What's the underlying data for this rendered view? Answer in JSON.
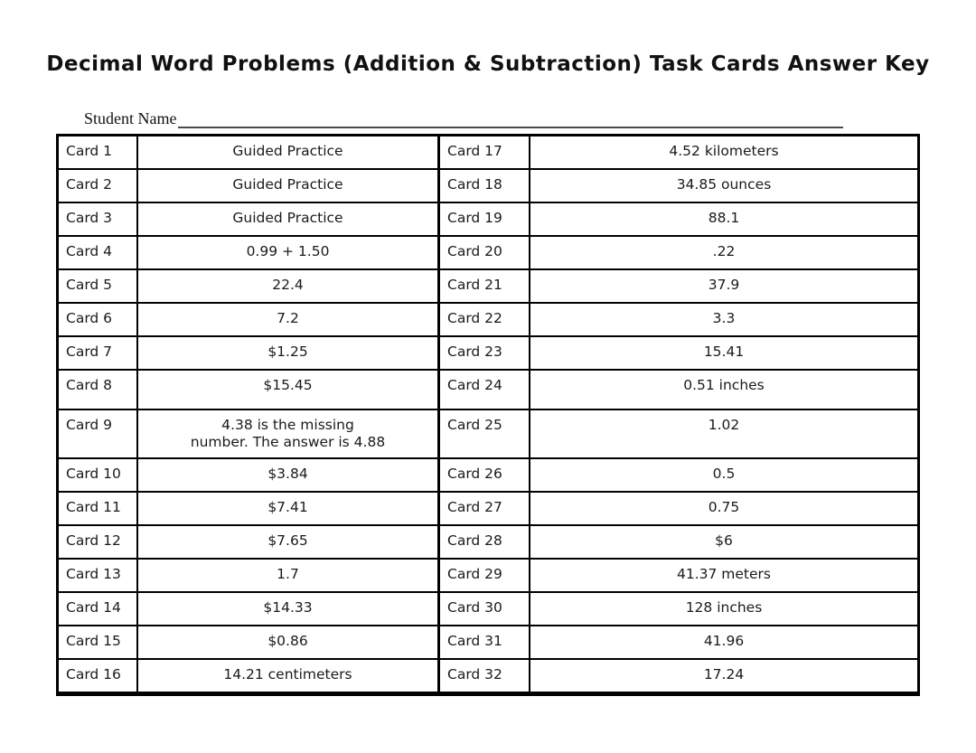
{
  "title": "Decimal Word Problems (Addition & Subtraction) Task Cards Answer Key",
  "student_name": {
    "label": "Student Name",
    "value": ""
  },
  "table": {
    "rows": [
      {
        "left_card": "Card 1",
        "left_answer": "Guided Practice",
        "right_card": "Card 17",
        "right_answer": "4.52 kilometers"
      },
      {
        "left_card": "Card 2",
        "left_answer": "Guided Practice",
        "right_card": "Card 18",
        "right_answer": "34.85 ounces"
      },
      {
        "left_card": "Card 3",
        "left_answer": "Guided Practice",
        "right_card": "Card 19",
        "right_answer": "88.1"
      },
      {
        "left_card": "Card 4",
        "left_answer": "0.99 + 1.50",
        "right_card": "Card 20",
        "right_answer": ".22"
      },
      {
        "left_card": "Card 5",
        "left_answer": "22.4",
        "right_card": "Card 21",
        "right_answer": "37.9"
      },
      {
        "left_card": "Card 6",
        "left_answer": "7.2",
        "right_card": "Card 22",
        "right_answer": "3.3"
      },
      {
        "left_card": "Card 7",
        "left_answer": "$1.25",
        "right_card": "Card 23",
        "right_answer": "15.41"
      },
      {
        "left_card": "Card 8",
        "left_answer": "$15.45",
        "right_card": "Card 24",
        "right_answer": "0.51 inches"
      },
      {
        "left_card": "Card 9",
        "left_answer": "4.38 is the missing\nnumber.  The answer is 4.88",
        "right_card": "Card 25",
        "right_answer": "1.02"
      },
      {
        "left_card": "Card 10",
        "left_answer": "$3.84",
        "right_card": "Card 26",
        "right_answer": "0.5"
      },
      {
        "left_card": "Card 11",
        "left_answer": "$7.41",
        "right_card": "Card 27",
        "right_answer": "0.75"
      },
      {
        "left_card": "Card 12",
        "left_answer": "$7.65",
        "right_card": "Card 28",
        "right_answer": "$6"
      },
      {
        "left_card": "Card 13",
        "left_answer": "1.7",
        "right_card": "Card 29",
        "right_answer": "41.37 meters"
      },
      {
        "left_card": "Card 14",
        "left_answer": "$14.33",
        "right_card": "Card 30",
        "right_answer": "128 inches"
      },
      {
        "left_card": "Card 15",
        "left_answer": "$0.86",
        "right_card": "Card 31",
        "right_answer": "41.96"
      },
      {
        "left_card": "Card 16",
        "left_answer": "14.21 centimeters",
        "right_card": "Card 32",
        "right_answer": "17.24"
      }
    ]
  }
}
